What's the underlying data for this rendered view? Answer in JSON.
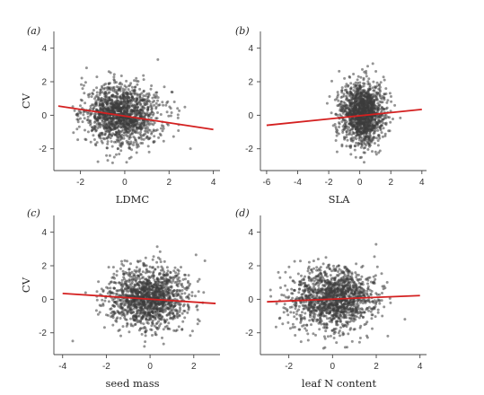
{
  "colors": {
    "points": "#3c3c3c",
    "trend": "#d42020",
    "axis": "#444444"
  },
  "chart_data": [
    {
      "type": "scatter",
      "panel": "(a)",
      "xlabel": "LDMC",
      "ylabel": "CV",
      "xlim": [
        -3.2,
        4.3
      ],
      "ylim": [
        -3.3,
        5.0
      ],
      "xticks": [
        "-2",
        "0",
        "2",
        "4"
      ],
      "xtick_values": [
        -2,
        0,
        2,
        4
      ],
      "yticks": [
        "-2",
        "0",
        "2",
        "4"
      ],
      "ytick_values": [
        -2,
        0,
        2,
        4
      ],
      "point_cloud": {
        "n": 1400,
        "x_center": -0.1,
        "x_sd": 0.85,
        "y_center": 0.05,
        "y_sd": 0.9
      },
      "trend": {
        "x": [
          -3.0,
          4.0
        ],
        "y": [
          0.55,
          -0.85
        ]
      }
    },
    {
      "type": "scatter",
      "panel": "(b)",
      "xlabel": "SLA",
      "ylabel": "",
      "xlim": [
        -6.4,
        4.3
      ],
      "ylim": [
        -3.3,
        5.0
      ],
      "xticks": [
        "-6",
        "-4",
        "-2",
        "0",
        "2",
        "4"
      ],
      "xtick_values": [
        -6,
        -4,
        -2,
        0,
        2,
        4
      ],
      "yticks": [
        "-2",
        "0",
        "2",
        "4"
      ],
      "ytick_values": [
        -2,
        0,
        2,
        4
      ],
      "point_cloud": {
        "n": 1400,
        "x_center": 0.2,
        "x_sd": 0.7,
        "y_center": 0.1,
        "y_sd": 0.9
      },
      "trend": {
        "x": [
          -6.0,
          4.0
        ],
        "y": [
          -0.6,
          0.35
        ]
      }
    },
    {
      "type": "scatter",
      "panel": "(c)",
      "xlabel": "seed mass",
      "ylabel": "CV",
      "xlim": [
        -4.4,
        3.2
      ],
      "ylim": [
        -3.3,
        5.0
      ],
      "xticks": [
        "-4",
        "-2",
        "0",
        "2"
      ],
      "xtick_values": [
        -4,
        -2,
        0,
        2
      ],
      "yticks": [
        "-2",
        "0",
        "2",
        "4"
      ],
      "ytick_values": [
        -2,
        0,
        2,
        4
      ],
      "point_cloud": {
        "n": 1400,
        "x_center": -0.1,
        "x_sd": 0.9,
        "y_center": 0.05,
        "y_sd": 0.9
      },
      "trend": {
        "x": [
          -4.0,
          3.0
        ],
        "y": [
          0.35,
          -0.25
        ]
      }
    },
    {
      "type": "scatter",
      "panel": "(d)",
      "xlabel": "leaf N content",
      "ylabel": "",
      "xlim": [
        -3.3,
        4.3
      ],
      "ylim": [
        -3.3,
        5.0
      ],
      "xticks": [
        "-2",
        "0",
        "2",
        "4"
      ],
      "xtick_values": [
        -2,
        0,
        2,
        4
      ],
      "yticks": [
        "-2",
        "0",
        "2",
        "4"
      ],
      "ytick_values": [
        -2,
        0,
        2,
        4
      ],
      "point_cloud": {
        "n": 1400,
        "x_center": 0.1,
        "x_sd": 0.95,
        "y_center": 0.05,
        "y_sd": 0.9
      },
      "trend": {
        "x": [
          -3.0,
          4.0
        ],
        "y": [
          -0.15,
          0.22
        ]
      }
    }
  ]
}
